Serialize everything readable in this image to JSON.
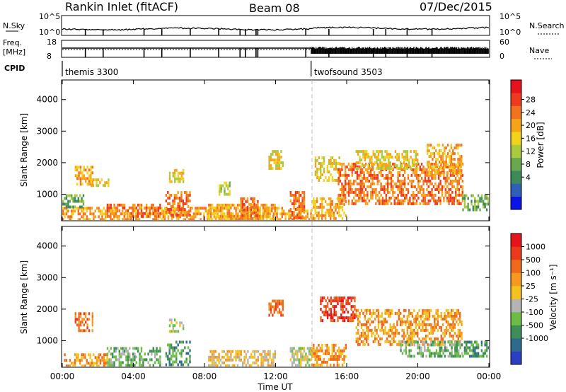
{
  "header": {
    "title": "Rankin Inlet (fitACF)",
    "beam": "Beam 08",
    "date": "07/Dec/2015"
  },
  "top_panel": {
    "left_label": "N.Sky",
    "left_ticks": [
      "10^5",
      "10^0"
    ],
    "right_label": "N.Search",
    "right_ticks": [
      "10^5",
      "10^0"
    ]
  },
  "freq_panel": {
    "left_label_1": "Freq.",
    "left_label_2": "[MHz]",
    "left_ticks": [
      "18",
      "8"
    ],
    "right_label": "Nave",
    "right_ticks": [
      "60",
      "0"
    ]
  },
  "cpid": {
    "label": "CPID",
    "segments": [
      {
        "name": "themis 3300",
        "start_hour": 0,
        "end_hour": 14
      },
      {
        "name": "twofsound 3503",
        "start_hour": 14,
        "end_hour": 24
      }
    ]
  },
  "chart_data": [
    {
      "type": "heatmap",
      "quantity": "Power",
      "x": {
        "label": "Time UT",
        "range": [
          0,
          24
        ],
        "ticks": [
          "00:00",
          "04:00",
          "08:00",
          "12:00",
          "16:00",
          "20:00",
          "00:00"
        ]
      },
      "y": {
        "label": "Slant Range [km]",
        "range": [
          180,
          4600
        ],
        "ticks": [
          1000,
          2000,
          3000,
          4000
        ]
      },
      "colorbar": {
        "label": "Power [dB]",
        "ticks": [
          "28",
          "24",
          "20",
          "16",
          "12",
          "8",
          "4"
        ],
        "range": [
          0,
          32
        ],
        "colors": [
          "#0a14e6",
          "#2f5fb8",
          "#3f8a5a",
          "#69a84f",
          "#a9c93f",
          "#f2d21a",
          "#f7a31a",
          "#f2731f",
          "#ee3b1f",
          "#e6141a"
        ]
      },
      "regions": [
        {
          "t": [
            0.0,
            14.0
          ],
          "r": [
            200,
            600
          ],
          "v": 22
        },
        {
          "t": [
            0.0,
            1.2
          ],
          "r": [
            600,
            1000
          ],
          "v": 10
        },
        {
          "t": [
            0.7,
            1.7
          ],
          "r": [
            1300,
            1900
          ],
          "v": 20
        },
        {
          "t": [
            1.6,
            2.6
          ],
          "r": [
            1300,
            1500
          ],
          "v": 18
        },
        {
          "t": [
            2.5,
            5.5
          ],
          "r": [
            300,
            700
          ],
          "v": 26
        },
        {
          "t": [
            5.8,
            7.2
          ],
          "r": [
            300,
            1100
          ],
          "v": 24
        },
        {
          "t": [
            6.0,
            6.8
          ],
          "r": [
            1400,
            1800
          ],
          "v": 16
        },
        {
          "t": [
            8.2,
            12.0
          ],
          "r": [
            250,
            700
          ],
          "v": 20
        },
        {
          "t": [
            8.8,
            9.4
          ],
          "r": [
            1000,
            1400
          ],
          "v": 14
        },
        {
          "t": [
            10.0,
            11.0
          ],
          "r": [
            250,
            900
          ],
          "v": 26
        },
        {
          "t": [
            11.6,
            12.4
          ],
          "r": [
            1800,
            2400
          ],
          "v": 16
        },
        {
          "t": [
            12.8,
            13.6
          ],
          "r": [
            250,
            1100
          ],
          "v": 26
        },
        {
          "t": [
            14.0,
            16.0
          ],
          "r": [
            250,
            900
          ],
          "v": 22
        },
        {
          "t": [
            14.2,
            15.6
          ],
          "r": [
            1400,
            2200
          ],
          "v": 16
        },
        {
          "t": [
            15.5,
            22.5
          ],
          "r": [
            700,
            2000
          ],
          "v": 24
        },
        {
          "t": [
            16.5,
            20.0
          ],
          "r": [
            1800,
            2400
          ],
          "v": 18
        },
        {
          "t": [
            20.5,
            22.5
          ],
          "r": [
            1700,
            2600
          ],
          "v": 20
        },
        {
          "t": [
            22.5,
            24.0
          ],
          "r": [
            500,
            1000
          ],
          "v": 10
        }
      ]
    },
    {
      "type": "heatmap",
      "quantity": "Velocity",
      "x": {
        "label": "Time UT",
        "range": [
          0,
          24
        ],
        "ticks": [
          "00:00",
          "04:00",
          "08:00",
          "12:00",
          "16:00",
          "20:00",
          "00:00"
        ]
      },
      "y": {
        "label": "Slant Range [km]",
        "range": [
          180,
          4600
        ],
        "ticks": [
          1000,
          2000,
          3000,
          4000
        ]
      },
      "colorbar": {
        "label": "Velocity [m s⁻¹]",
        "ticks": [
          "1000",
          "500",
          "100",
          "25",
          "-25",
          "-100",
          "-500",
          "-1000"
        ],
        "colors": [
          "#2a3fc4",
          "#2e6a8c",
          "#3e8f57",
          "#6dbd45",
          "#b4b4b4",
          "#f4c21f",
          "#f59a1f",
          "#f06a1c",
          "#ec3b1c",
          "#e6141a"
        ]
      },
      "regions": [
        {
          "t": [
            0.0,
            2.5
          ],
          "r": [
            200,
            600
          ],
          "v": 6
        },
        {
          "t": [
            0.7,
            1.7
          ],
          "r": [
            1300,
            1900
          ],
          "v": 7
        },
        {
          "t": [
            2.5,
            5.5
          ],
          "r": [
            200,
            800
          ],
          "v": 3
        },
        {
          "t": [
            5.8,
            7.2
          ],
          "r": [
            200,
            1000
          ],
          "v": 2
        },
        {
          "t": [
            6.0,
            6.8
          ],
          "r": [
            1300,
            1700
          ],
          "v": 4
        },
        {
          "t": [
            8.2,
            12.0
          ],
          "r": [
            200,
            700
          ],
          "v": 5
        },
        {
          "t": [
            11.6,
            12.4
          ],
          "r": [
            1800,
            2300
          ],
          "v": 7
        },
        {
          "t": [
            12.8,
            14.0
          ],
          "r": [
            200,
            800
          ],
          "v": 4
        },
        {
          "t": [
            14.0,
            16.0
          ],
          "r": [
            200,
            900
          ],
          "v": 6
        },
        {
          "t": [
            14.5,
            16.5
          ],
          "r": [
            1600,
            2400
          ],
          "v": 8
        },
        {
          "t": [
            16.5,
            22.5
          ],
          "r": [
            900,
            2000
          ],
          "v": 6
        },
        {
          "t": [
            19.0,
            22.5
          ],
          "r": [
            500,
            1000
          ],
          "v": 3
        },
        {
          "t": [
            22.5,
            24.0
          ],
          "r": [
            500,
            1000
          ],
          "v": 2
        }
      ]
    }
  ]
}
